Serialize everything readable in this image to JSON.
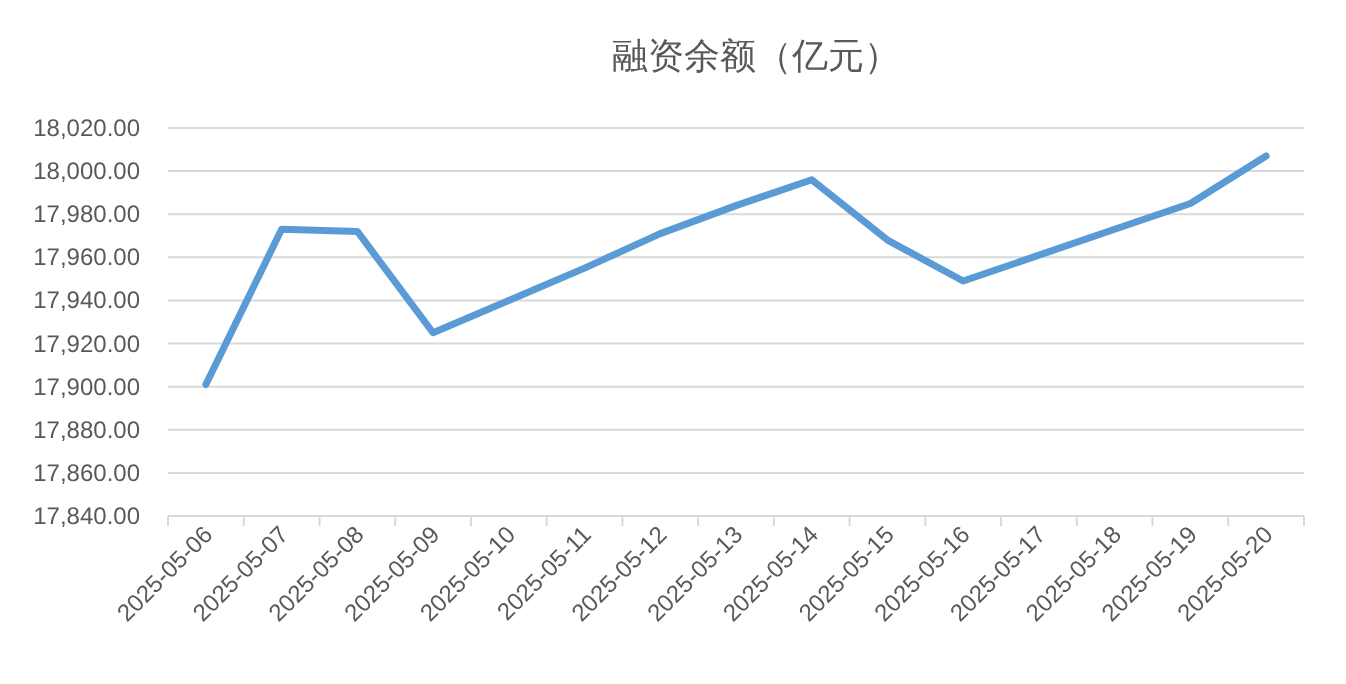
{
  "chart_data": {
    "type": "line",
    "title": "融资余额（亿元）",
    "categories": [
      "2025-05-06",
      "2025-05-07",
      "2025-05-08",
      "2025-05-09",
      "2025-05-10",
      "2025-05-11",
      "2025-05-12",
      "2025-05-13",
      "2025-05-14",
      "2025-05-15",
      "2025-05-16",
      "2025-05-17",
      "2025-05-18",
      "2025-05-19",
      "2025-05-20"
    ],
    "series": [
      {
        "color": "#5b9bd5",
        "values": [
          17901,
          17973,
          17972,
          17925,
          17940,
          17955,
          17971,
          17984,
          17996,
          17968,
          17949,
          17961,
          17973,
          17985,
          18007
        ]
      }
    ],
    "ylim": [
      17840,
      18020
    ],
    "yticks": [
      {
        "value": 17840,
        "label": "17,840.00"
      },
      {
        "value": 17860,
        "label": "17,860.00"
      },
      {
        "value": 17880,
        "label": "17,880.00"
      },
      {
        "value": 17900,
        "label": "17,900.00"
      },
      {
        "value": 17920,
        "label": "17,920.00"
      },
      {
        "value": 17940,
        "label": "17,940.00"
      },
      {
        "value": 17960,
        "label": "17,960.00"
      },
      {
        "value": 17980,
        "label": "17,980.00"
      },
      {
        "value": 18000,
        "label": "18,000.00"
      },
      {
        "value": 18020,
        "label": "18,020.00"
      }
    ],
    "grid": "y",
    "marker": "none",
    "line_style": "solid"
  }
}
